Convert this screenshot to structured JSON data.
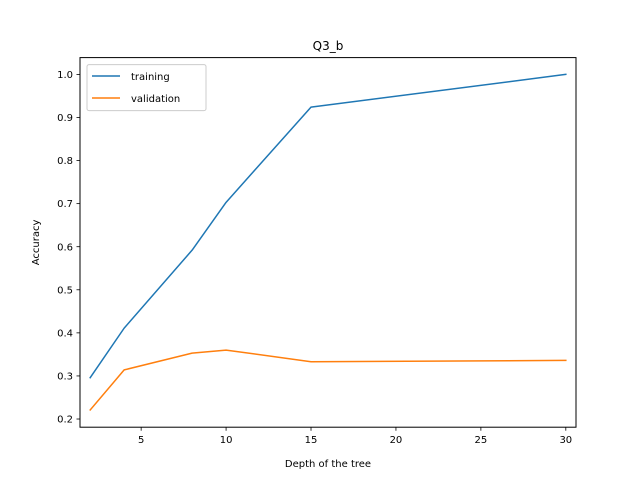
{
  "chart_data": {
    "type": "line",
    "title": "Q3_b",
    "xlabel": "Depth of the tree",
    "ylabel": "Accuracy",
    "xlim": [
      1.4,
      30.6
    ],
    "ylim": [
      0.181,
      1.039
    ],
    "xticks": [
      5,
      10,
      15,
      20,
      25,
      30
    ],
    "yticks": [
      0.2,
      0.3,
      0.4,
      0.5,
      0.6,
      0.7,
      0.8,
      0.9,
      1.0
    ],
    "x": [
      2,
      4,
      8,
      10,
      15,
      30
    ],
    "series": [
      {
        "name": "training",
        "color": "#1f77b4",
        "values": [
          0.296,
          0.411,
          0.592,
          0.703,
          0.924,
          1.0
        ]
      },
      {
        "name": "validation",
        "color": "#ff7f0e",
        "values": [
          0.221,
          0.314,
          0.353,
          0.36,
          0.333,
          0.336
        ]
      }
    ],
    "grid": false,
    "legend": "upper-left"
  }
}
